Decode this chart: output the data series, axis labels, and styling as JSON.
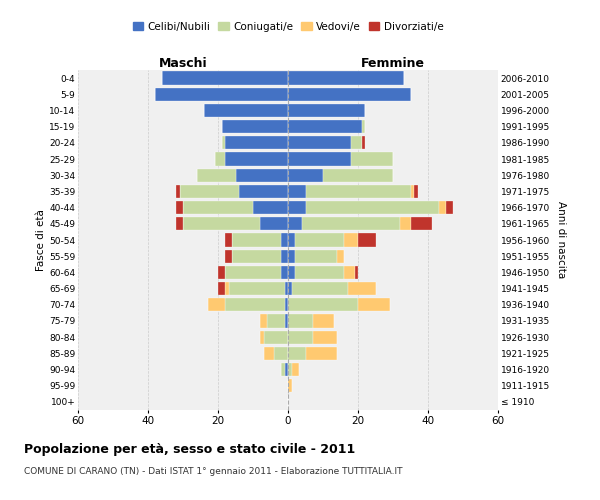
{
  "age_groups": [
    "100+",
    "95-99",
    "90-94",
    "85-89",
    "80-84",
    "75-79",
    "70-74",
    "65-69",
    "60-64",
    "55-59",
    "50-54",
    "45-49",
    "40-44",
    "35-39",
    "30-34",
    "25-29",
    "20-24",
    "15-19",
    "10-14",
    "5-9",
    "0-4"
  ],
  "birth_years": [
    "≤ 1910",
    "1911-1915",
    "1916-1920",
    "1921-1925",
    "1926-1930",
    "1931-1935",
    "1936-1940",
    "1941-1945",
    "1946-1950",
    "1951-1955",
    "1956-1960",
    "1961-1965",
    "1966-1970",
    "1971-1975",
    "1976-1980",
    "1981-1985",
    "1986-1990",
    "1991-1995",
    "1996-2000",
    "2001-2005",
    "2006-2010"
  ],
  "colors": {
    "celibi": "#4472c4",
    "coniugati": "#c5d9a0",
    "vedovi": "#ffc970",
    "divorziati": "#c0342c"
  },
  "males": {
    "celibi": [
      0,
      0,
      1,
      0,
      0,
      1,
      1,
      1,
      2,
      2,
      2,
      8,
      10,
      14,
      15,
      18,
      18,
      19,
      24,
      38,
      36
    ],
    "coniugati": [
      0,
      0,
      1,
      4,
      7,
      5,
      17,
      16,
      16,
      14,
      14,
      22,
      20,
      17,
      11,
      3,
      1,
      0,
      0,
      0,
      0
    ],
    "vedovi": [
      0,
      0,
      0,
      3,
      1,
      2,
      5,
      1,
      0,
      0,
      0,
      0,
      0,
      0,
      0,
      0,
      0,
      0,
      0,
      0,
      0
    ],
    "divorziati": [
      0,
      0,
      0,
      0,
      0,
      0,
      0,
      2,
      2,
      2,
      2,
      2,
      2,
      1,
      0,
      0,
      0,
      0,
      0,
      0,
      0
    ]
  },
  "females": {
    "nubili": [
      0,
      0,
      0,
      0,
      0,
      0,
      0,
      1,
      2,
      2,
      2,
      4,
      5,
      5,
      10,
      18,
      18,
      21,
      22,
      35,
      33
    ],
    "coniugate": [
      0,
      0,
      1,
      5,
      7,
      7,
      20,
      16,
      14,
      12,
      14,
      28,
      38,
      30,
      20,
      12,
      3,
      1,
      0,
      0,
      0
    ],
    "vedove": [
      0,
      1,
      2,
      9,
      7,
      6,
      9,
      8,
      3,
      2,
      4,
      3,
      2,
      1,
      0,
      0,
      0,
      0,
      0,
      0,
      0
    ],
    "divorziate": [
      0,
      0,
      0,
      0,
      0,
      0,
      0,
      0,
      1,
      0,
      5,
      6,
      2,
      1,
      0,
      0,
      1,
      0,
      0,
      0,
      0
    ]
  },
  "xlim": 60,
  "title": "Popolazione per età, sesso e stato civile - 2011",
  "subtitle": "COMUNE DI CARANO (TN) - Dati ISTAT 1° gennaio 2011 - Elaborazione TUTTITALIA.IT",
  "ylabel_left": "Fasce di età",
  "ylabel_right": "Anni di nascita",
  "xlabel_left": "Maschi",
  "xlabel_right": "Femmine",
  "legend_labels": [
    "Celibi/Nubili",
    "Coniugati/e",
    "Vedovi/e",
    "Divorziati/e"
  ],
  "background_color": "#f0f0f0",
  "grid_color": "#cccccc"
}
